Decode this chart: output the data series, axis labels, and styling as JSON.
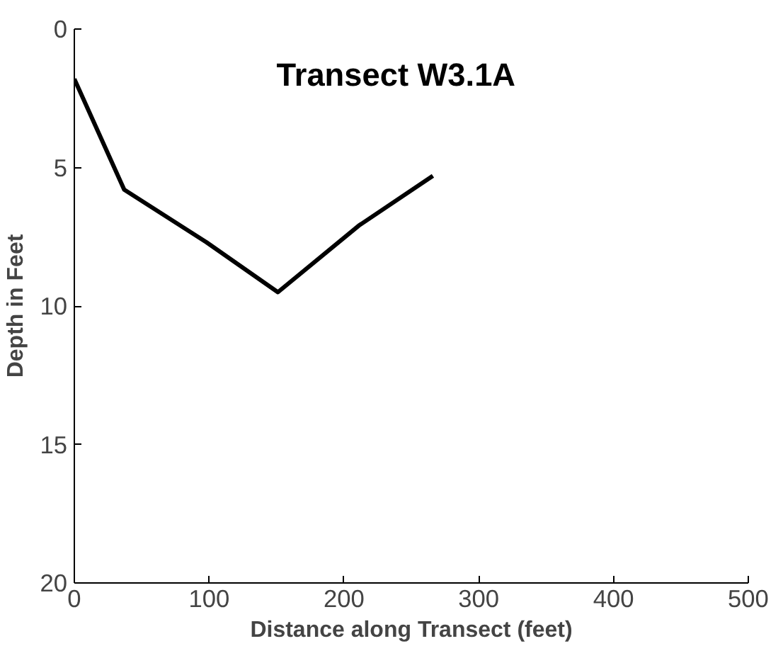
{
  "chart_data": {
    "type": "line",
    "title": "Transect W3.1A",
    "xlabel": "Distance along Transect (feet)",
    "ylabel": "Depth in Feet",
    "x": [
      0,
      37,
      98,
      151,
      211,
      266
    ],
    "series": [
      {
        "color": "#000000",
        "values": [
          1.8,
          5.8,
          7.7,
          9.5,
          7.1,
          5.3
        ]
      }
    ],
    "xlim": [
      0,
      500
    ],
    "ylim": [
      20,
      0
    ],
    "xticks": [
      0,
      100,
      200,
      300,
      400,
      500
    ],
    "yticks": [
      0,
      5,
      10,
      15,
      20
    ],
    "grid": false,
    "marker": "none",
    "line_style": "solid"
  }
}
